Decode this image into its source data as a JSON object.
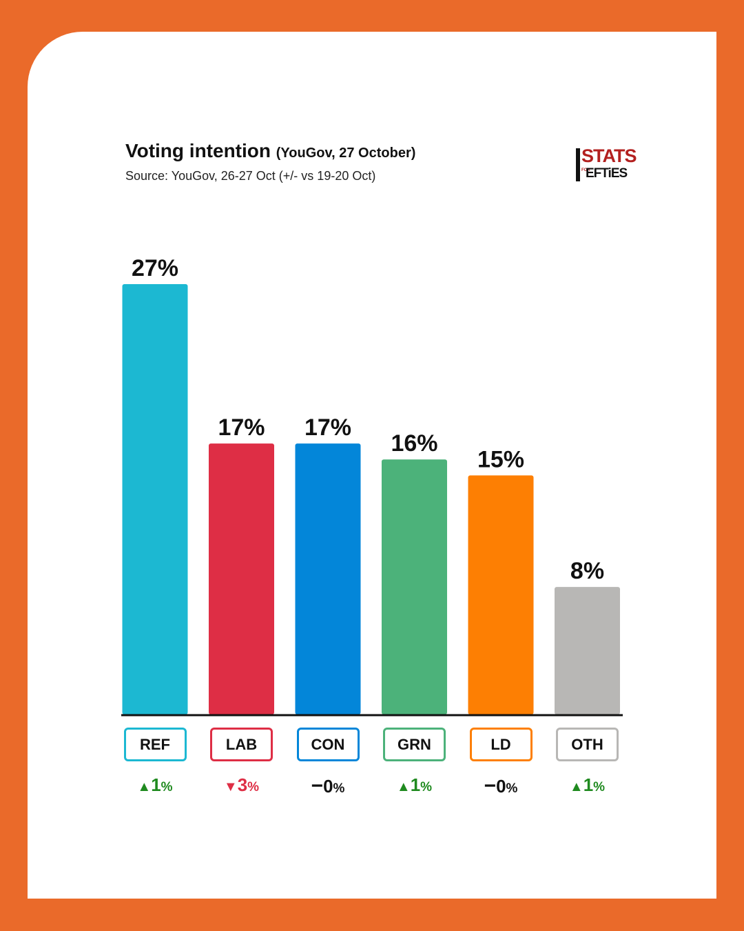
{
  "header": {
    "title": "Voting intention",
    "title_suffix": "(YouGov, 27 October)",
    "source": "Source: YouGov, 26-27 Oct (+/- vs 19-20 Oct)"
  },
  "logo": {
    "top": "STATS",
    "small": "FOR",
    "bottom": "EFTiES"
  },
  "chart_data": {
    "type": "bar",
    "title": "Voting intention (YouGov, 27 October)",
    "subtitle": "Source: YouGov, 26-27 Oct (+/- vs 19-20 Oct)",
    "categories": [
      "REF",
      "LAB",
      "CON",
      "GRN",
      "LD",
      "OTH"
    ],
    "values": [
      27,
      17,
      17,
      16,
      15,
      8
    ],
    "value_labels": [
      "27%",
      "17%",
      "17%",
      "16%",
      "15%",
      "8%"
    ],
    "changes": [
      {
        "direction": "up",
        "arrow": "▲",
        "value": "1",
        "unit": "%"
      },
      {
        "direction": "down",
        "arrow": "▼",
        "value": "3",
        "unit": "%"
      },
      {
        "direction": "none",
        "arrow": "−",
        "value": "0",
        "unit": "%"
      },
      {
        "direction": "up",
        "arrow": "▲",
        "value": "1",
        "unit": "%"
      },
      {
        "direction": "none",
        "arrow": "−",
        "value": "0",
        "unit": "%"
      },
      {
        "direction": "up",
        "arrow": "▲",
        "value": "1",
        "unit": "%"
      }
    ],
    "colors": [
      "#1cb8d2",
      "#de2e45",
      "#0386d9",
      "#4cb27a",
      "#fd7f03",
      "#b8b7b5"
    ],
    "change_colors": {
      "up": "#1f8a1f",
      "down": "#de2e45",
      "none": "#111111"
    },
    "ylim": [
      0,
      27
    ],
    "grid": false,
    "legend": "none",
    "xlabel": "",
    "ylabel": ""
  }
}
